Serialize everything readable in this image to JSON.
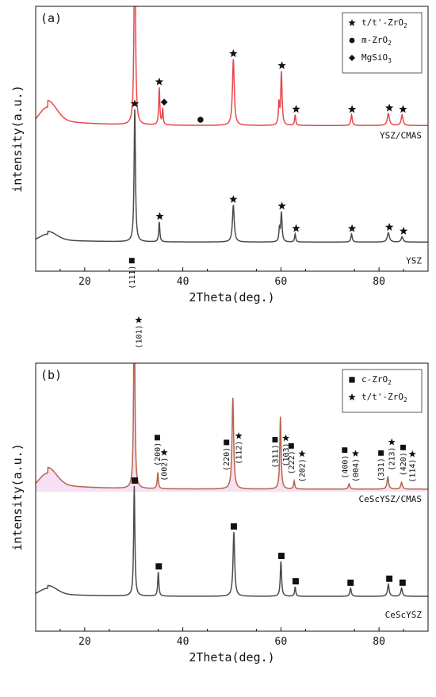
{
  "chart_data": [
    {
      "type": "line",
      "panel_label": "(a)",
      "xlabel": "2Theta(deg.)",
      "ylabel": "intensity(a.u.)",
      "xlim": [
        10,
        90
      ],
      "xticks": [
        20,
        40,
        60,
        80
      ],
      "legend": {
        "placement": "top-right",
        "entries": [
          {
            "symbol": "star",
            "label": "t/t'-ZrO",
            "sub": "2"
          },
          {
            "symbol": "circle",
            "label": "m-ZrO",
            "sub": "2"
          },
          {
            "symbol": "diamond",
            "label": "MgSiO",
            "sub": "3"
          }
        ]
      },
      "series": [
        {
          "name": "YSZ/CMAS",
          "color": "#e8474c",
          "baseline_level": 0.55,
          "hump": {
            "center": 12.5,
            "height": 0.07,
            "width": 2.5
          },
          "peaks": [
            {
              "x": 30.2,
              "h": 0.82,
              "w": 0.16
            },
            {
              "x": 35.2,
              "h": 0.14,
              "w": 0.14
            },
            {
              "x": 35.9,
              "h": 0.06,
              "w": 0.12
            },
            {
              "x": 50.3,
              "h": 0.25,
              "w": 0.22
            },
            {
              "x": 59.6,
              "h": 0.08,
              "w": 0.13
            },
            {
              "x": 60.1,
              "h": 0.2,
              "w": 0.16
            },
            {
              "x": 62.9,
              "h": 0.04,
              "w": 0.14
            },
            {
              "x": 74.4,
              "h": 0.04,
              "w": 0.17
            },
            {
              "x": 81.9,
              "h": 0.045,
              "w": 0.26
            },
            {
              "x": 84.7,
              "h": 0.04,
              "w": 0.22
            }
          ],
          "markers": [
            {
              "x": 30.2,
              "symbol": "star"
            },
            {
              "x": 35.2,
              "symbol": "star"
            },
            {
              "x": 36.2,
              "symbol": "diamond"
            },
            {
              "x": 43.6,
              "symbol": "circle"
            },
            {
              "x": 50.3,
              "symbol": "star"
            },
            {
              "x": 60.2,
              "symbol": "star"
            },
            {
              "x": 63.1,
              "symbol": "star"
            },
            {
              "x": 74.5,
              "symbol": "star"
            },
            {
              "x": 82.1,
              "symbol": "star"
            },
            {
              "x": 84.9,
              "symbol": "star"
            }
          ]
        },
        {
          "name": "YSZ",
          "color": "#4a4a4a",
          "baseline_level": 0.11,
          "hump": {
            "center": 12.5,
            "height": 0.03,
            "width": 2.5
          },
          "peaks": [
            {
              "x": 30.2,
              "h": 0.5,
              "w": 0.16
            },
            {
              "x": 35.2,
              "h": 0.075,
              "w": 0.14
            },
            {
              "x": 50.3,
              "h": 0.14,
              "w": 0.22
            },
            {
              "x": 59.7,
              "h": 0.05,
              "w": 0.13
            },
            {
              "x": 60.1,
              "h": 0.11,
              "w": 0.16
            },
            {
              "x": 62.9,
              "h": 0.03,
              "w": 0.14
            },
            {
              "x": 74.4,
              "h": 0.03,
              "w": 0.17
            },
            {
              "x": 81.9,
              "h": 0.035,
              "w": 0.26
            },
            {
              "x": 84.7,
              "h": 0.02,
              "w": 0.22
            }
          ],
          "markers": [
            {
              "x": 30.2,
              "symbol": "star"
            },
            {
              "x": 35.3,
              "symbol": "star"
            },
            {
              "x": 50.3,
              "symbol": "star"
            },
            {
              "x": 60.2,
              "symbol": "star"
            },
            {
              "x": 63.1,
              "symbol": "star"
            },
            {
              "x": 74.5,
              "symbol": "star"
            },
            {
              "x": 82.1,
              "symbol": "star"
            },
            {
              "x": 85.0,
              "symbol": "star"
            }
          ]
        }
      ]
    },
    {
      "type": "line",
      "panel_label": "(b)",
      "xlabel": "2Theta(deg.)",
      "ylabel": "intensity(a.u.)",
      "xlim": [
        10,
        90
      ],
      "xticks": [
        20,
        40,
        60,
        80
      ],
      "legend": {
        "placement": "top-right",
        "entries": [
          {
            "symbol": "square",
            "label": "c-ZrO",
            "sub": "2"
          },
          {
            "symbol": "star",
            "label": "t/t'-ZrO",
            "sub": "2"
          }
        ]
      },
      "series": [
        {
          "name": "CeScYSZ/CMAS",
          "color": "#b5654a",
          "baseline_level": 0.53,
          "hump": {
            "center": 12.5,
            "height": 0.06,
            "width": 2.5
          },
          "peaks": [
            {
              "x": 30.1,
              "h": 0.72,
              "w": 0.15
            },
            {
              "x": 34.9,
              "h": 0.06,
              "w": 0.14
            },
            {
              "x": 50.2,
              "h": 0.34,
              "w": 0.2
            },
            {
              "x": 59.9,
              "h": 0.27,
              "w": 0.16
            },
            {
              "x": 62.7,
              "h": 0.03,
              "w": 0.14
            },
            {
              "x": 73.9,
              "h": 0.02,
              "w": 0.18
            },
            {
              "x": 81.8,
              "h": 0.045,
              "w": 0.2
            },
            {
              "x": 84.6,
              "h": 0.025,
              "w": 0.2
            }
          ],
          "markers": [],
          "planes": [
            {
              "x": 29.6,
              "label": "(111)",
              "top": "square"
            },
            {
              "x": 31.0,
              "label": "(101)",
              "top": "star"
            },
            {
              "x": 34.8,
              "label": "(200)",
              "top": "square"
            },
            {
              "x": 36.2,
              "label": "(002)",
              "top": "star"
            },
            {
              "x": 48.9,
              "label": "(220)",
              "top": "square"
            },
            {
              "x": 51.4,
              "label": "(112)",
              "top": "star"
            },
            {
              "x": 58.8,
              "label": "(311)",
              "top": "square"
            },
            {
              "x": 61.0,
              "label": "(103)",
              "top": "star"
            },
            {
              "x": 62.1,
              "label": "(222)",
              "top": "square"
            },
            {
              "x": 64.3,
              "label": "(202)",
              "top": "star"
            },
            {
              "x": 73.0,
              "label": "(400)",
              "top": "square"
            },
            {
              "x": 75.2,
              "label": "(004)",
              "top": "star"
            },
            {
              "x": 80.4,
              "label": "(331)",
              "top": "square"
            },
            {
              "x": 82.6,
              "label": "(213)",
              "top": "star"
            },
            {
              "x": 84.9,
              "label": "(420)",
              "top": "square"
            },
            {
              "x": 86.8,
              "label": "(114)",
              "top": "star"
            }
          ]
        },
        {
          "name": "CeScYSZ",
          "color": "#4a4a4a",
          "baseline_level": 0.13,
          "hump": {
            "center": 12.5,
            "height": 0.03,
            "width": 2.5
          },
          "peaks": [
            {
              "x": 30.1,
              "h": 0.41,
              "w": 0.15
            },
            {
              "x": 35.0,
              "h": 0.09,
              "w": 0.14
            },
            {
              "x": 50.4,
              "h": 0.24,
              "w": 0.2
            },
            {
              "x": 60.0,
              "h": 0.13,
              "w": 0.16
            },
            {
              "x": 62.9,
              "h": 0.035,
              "w": 0.14
            },
            {
              "x": 74.2,
              "h": 0.03,
              "w": 0.18
            },
            {
              "x": 81.9,
              "h": 0.045,
              "w": 0.2
            },
            {
              "x": 84.6,
              "h": 0.03,
              "w": 0.2
            }
          ],
          "markers": [
            {
              "x": 30.2,
              "symbol": "square"
            },
            {
              "x": 35.1,
              "symbol": "square"
            },
            {
              "x": 50.4,
              "symbol": "square"
            },
            {
              "x": 60.1,
              "symbol": "square"
            },
            {
              "x": 63.0,
              "symbol": "square"
            },
            {
              "x": 74.2,
              "symbol": "square"
            },
            {
              "x": 82.1,
              "symbol": "square"
            },
            {
              "x": 84.8,
              "symbol": "square"
            }
          ]
        }
      ]
    }
  ]
}
